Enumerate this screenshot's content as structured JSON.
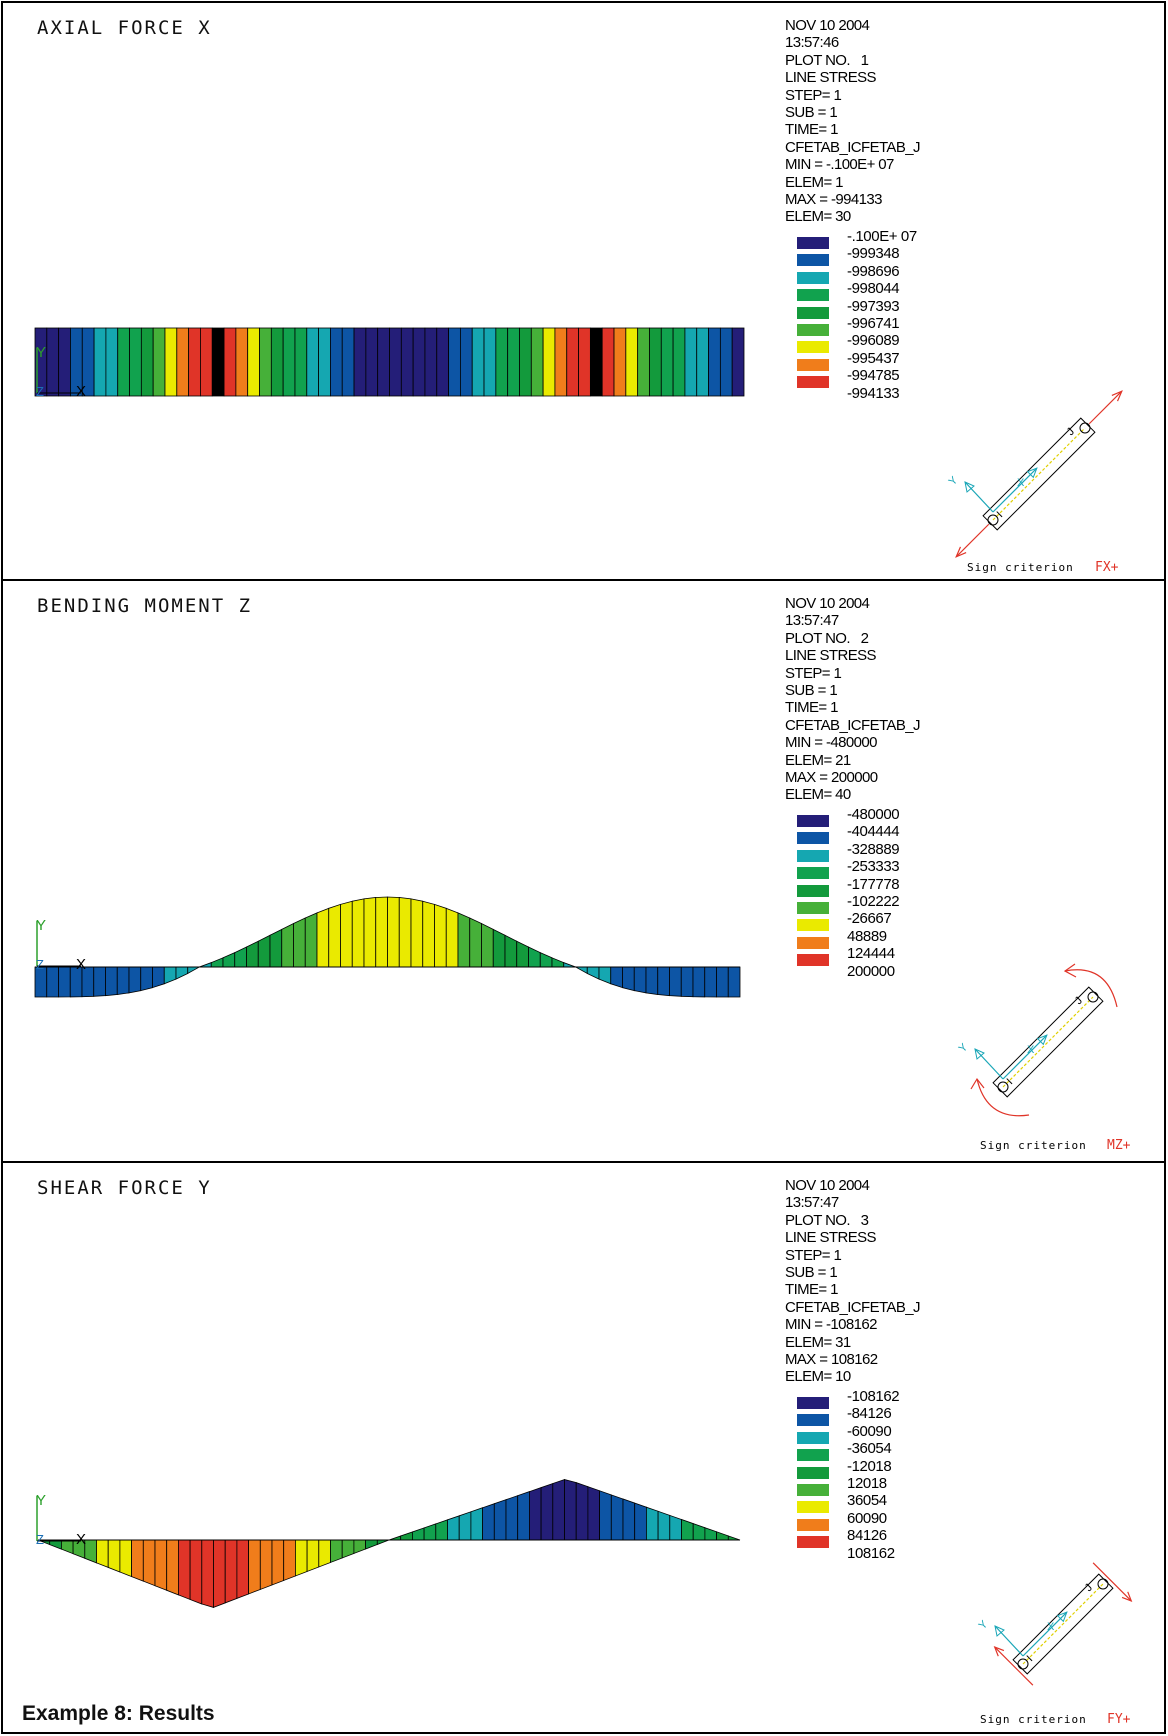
{
  "footer": "Example 8: Results",
  "palette": [
    "#241e78",
    "#0d55a5",
    "#15a7b1",
    "#11a24e",
    "#139a3c",
    "#46b039",
    "#eaea00",
    "#f07d1b",
    "#e03428"
  ],
  "panels": [
    {
      "id": "axial",
      "title": "AXIAL FORCE X",
      "info": [
        "NOV 10 2004",
        "13:57:46",
        "PLOT NO.   1",
        "LINE STRESS",
        "STEP= 1",
        "SUB = 1",
        "TIME= 1",
        "CFETAB_ICFETAB_J",
        "MIN = -.100E+ 07",
        "ELEM= 1",
        "MAX = -994133",
        "ELEM= 30"
      ],
      "legend": [
        "-.100E+ 07",
        "-999348",
        "-998696",
        "-998044",
        "-997393",
        "-996741",
        "-996089",
        "-995437",
        "-994785",
        "-994133"
      ],
      "axis_labels": {
        "y": "Y",
        "x": "X",
        "z": "Z"
      },
      "criterion_label": "Sign criterion",
      "criterion_code": "FX+",
      "symbol_labels": {
        "y": "Y",
        "x": "X",
        "i": "I",
        "j": "J"
      },
      "band_colors": [
        0,
        0,
        0,
        1,
        1,
        2,
        2,
        3,
        3,
        4,
        5,
        6,
        7,
        8,
        8,
        9,
        8,
        7,
        6,
        5,
        4,
        3,
        3,
        2,
        2,
        1,
        1,
        0,
        0,
        0,
        0,
        0,
        0,
        0,
        0,
        1,
        1,
        2,
        2,
        3,
        3,
        4,
        5,
        6,
        7,
        8,
        8,
        9,
        8,
        7,
        6,
        5,
        4,
        3,
        3,
        2,
        2,
        1,
        1,
        0
      ]
    },
    {
      "id": "bending",
      "title": "BENDING MOMENT Z",
      "info": [
        "NOV 10 2004",
        "13:57:47",
        "PLOT NO.   2",
        "LINE STRESS",
        "STEP= 1",
        "SUB = 1",
        "TIME= 1",
        "CFETAB_ICFETAB_J",
        "MIN = -480000",
        "ELEM= 21",
        "MAX = 200000",
        "ELEM= 40"
      ],
      "legend": [
        "-480000",
        "-404444",
        "-328889",
        "-253333",
        "-177778",
        "-102222",
        "-26667",
        "48889",
        "124444",
        "200000"
      ],
      "axis_labels": {
        "y": "Y",
        "x": "X",
        "z": "Z"
      },
      "criterion_label": "Sign criterion",
      "criterion_code": "MZ+",
      "symbol_labels": {
        "y": "Y",
        "x": "X",
        "i": "I",
        "j": "J"
      },
      "chart_data": {
        "type": "area",
        "description_of_values": "bending moment Mz along beam, parabolic-type distribution",
        "x_elements": [
          1,
          40
        ],
        "max": 200000,
        "min": -480000,
        "max_elem": 40,
        "min_elem": 21
      }
    },
    {
      "id": "shear",
      "title": "SHEAR FORCE Y",
      "info": [
        "NOV 10 2004",
        "13:57:47",
        "PLOT NO.   3",
        "LINE STRESS",
        "STEP= 1",
        "SUB = 1",
        "TIME= 1",
        "CFETAB_ICFETAB_J",
        "MIN = -108162",
        "ELEM= 31",
        "MAX = 108162",
        "ELEM= 10"
      ],
      "legend": [
        "-108162",
        "-84126",
        "-60090",
        "-36054",
        "-12018",
        "12018",
        "36054",
        "60090",
        "84126",
        "108162"
      ],
      "axis_labels": {
        "y": "Y",
        "x": "X",
        "z": "Z"
      },
      "criterion_label": "Sign criterion",
      "criterion_code": "FY+",
      "symbol_labels": {
        "y": "Y",
        "x": "X",
        "i": "I",
        "j": "J"
      },
      "chart_data": {
        "type": "area",
        "description_of_values": "shear force Fy along beam, piecewise linear",
        "x_elements": [
          1,
          40
        ],
        "max": 108162,
        "min": -108162,
        "max_elem": 10,
        "min_elem": 31
      }
    }
  ]
}
